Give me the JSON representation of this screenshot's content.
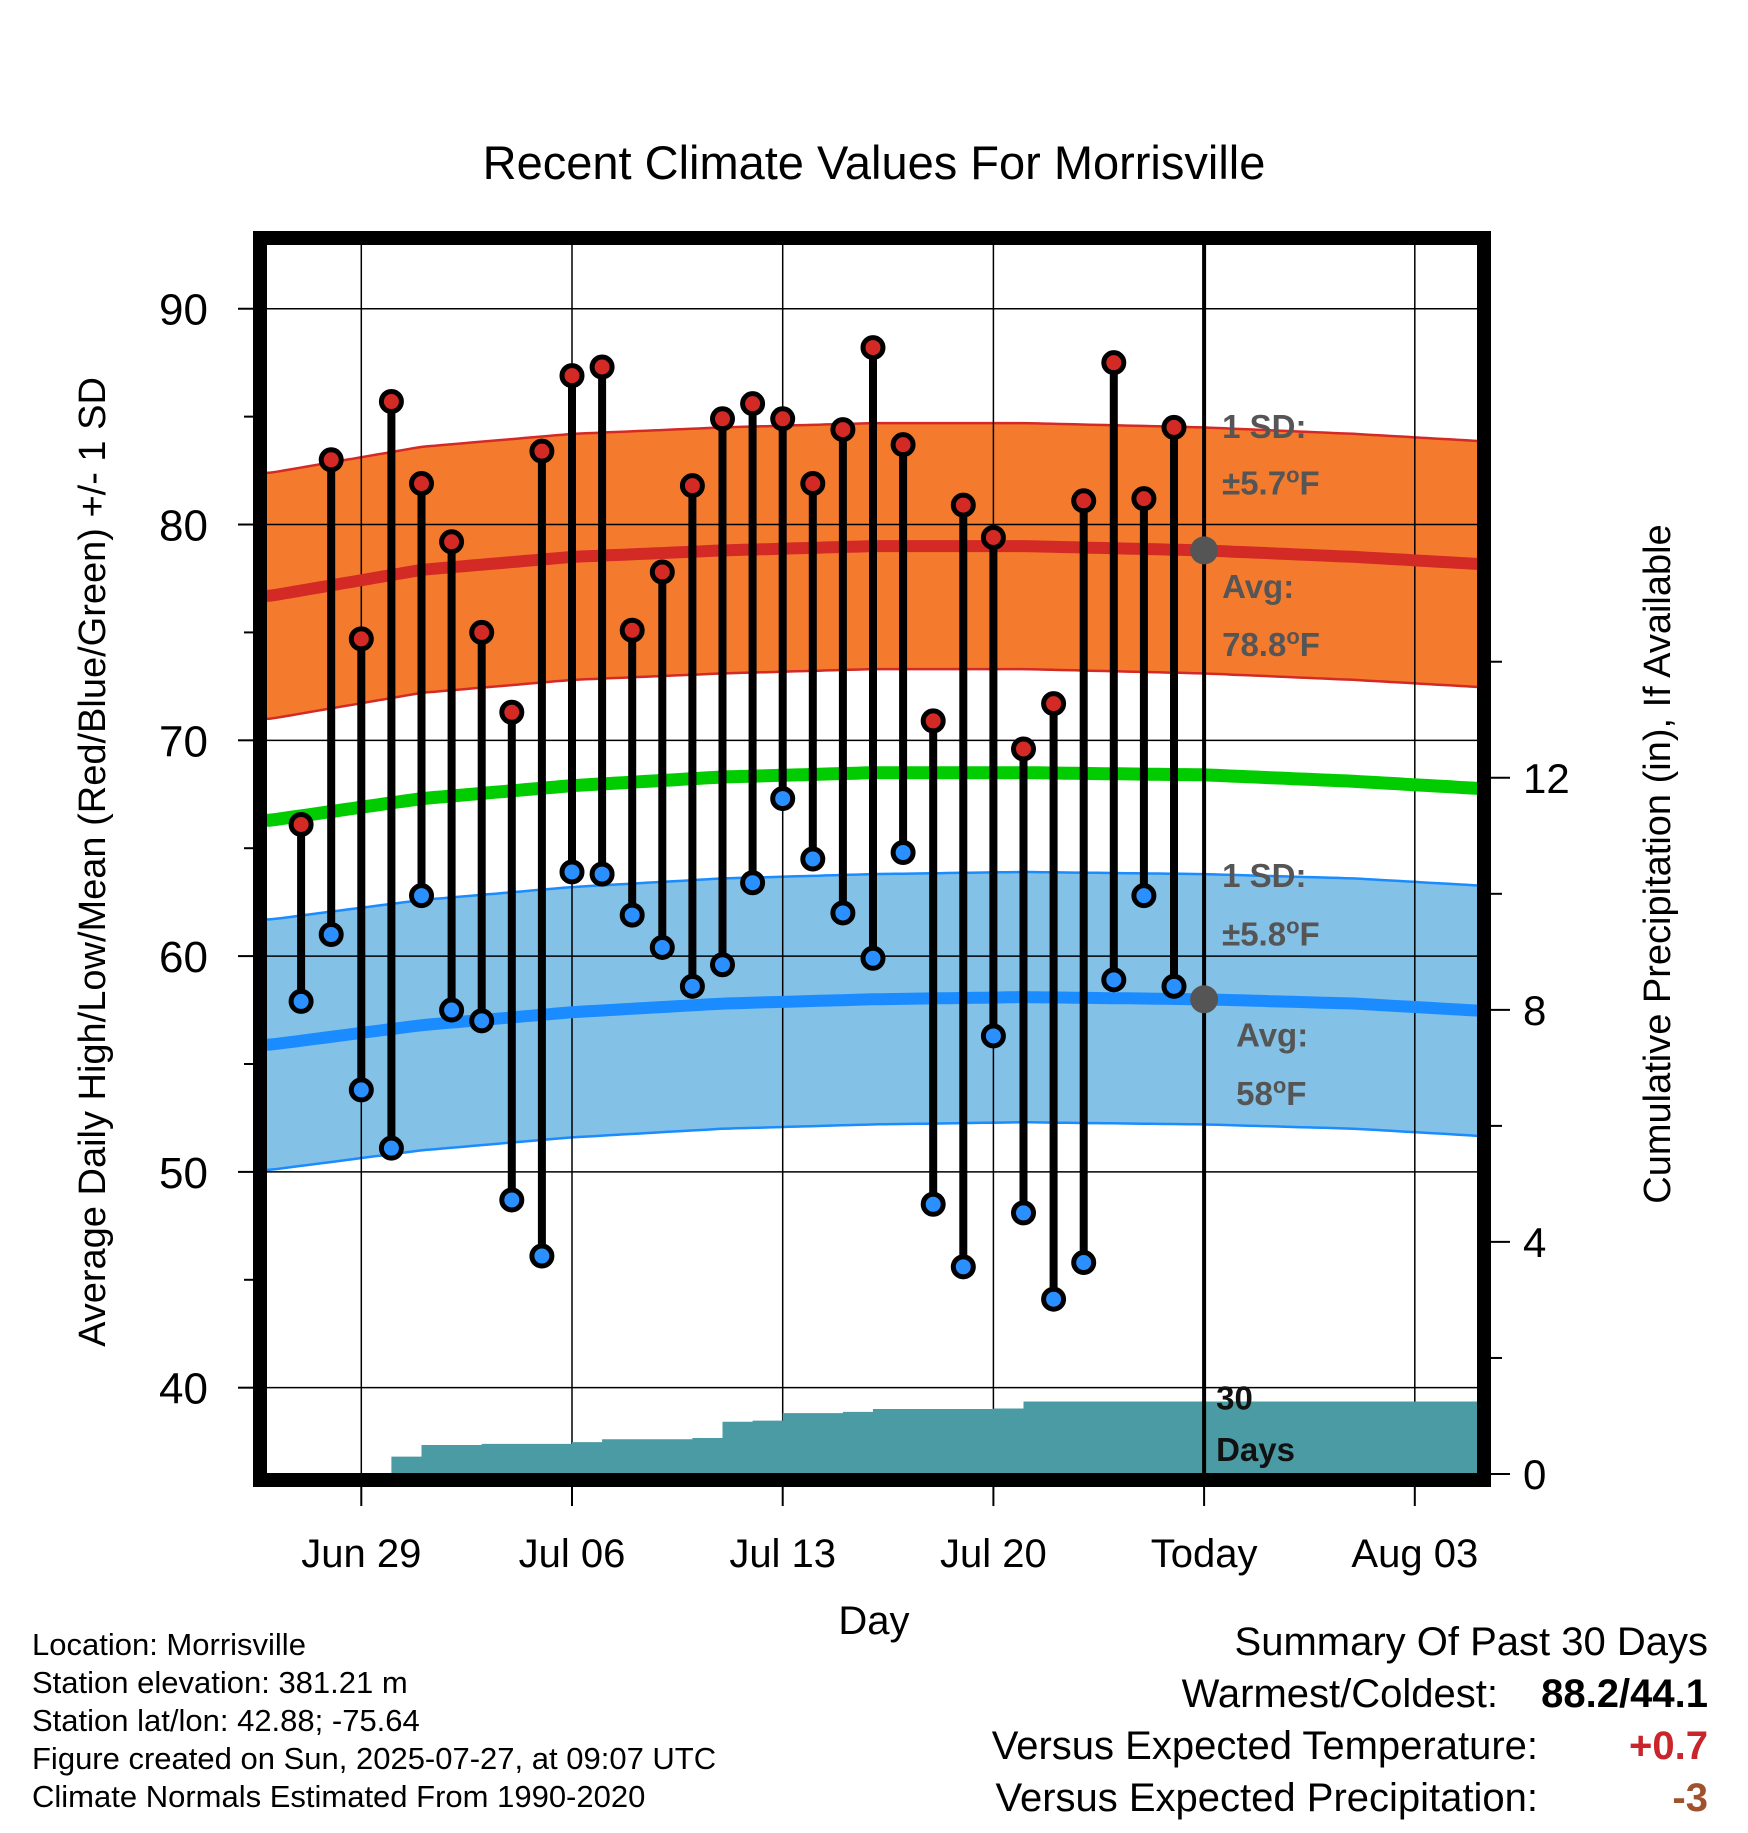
{
  "chart_data": {
    "type": "line",
    "title": "Recent Climate Values For Morrisville",
    "xlabel": "Day",
    "ylabel": "Average Daily High/Low/Mean (Red/Blue/Green) +/- 1 SD",
    "y2label": "Cumulative Precipitation (in), If Available",
    "ylim": [
      36,
      93
    ],
    "y_ticks": [
      40,
      50,
      60,
      70,
      80,
      90
    ],
    "y2_ticks": [
      0,
      4,
      8,
      12
    ],
    "y2lim": [
      0,
      21.2
    ],
    "x_range": [
      "2025-06-26",
      "2025-08-06"
    ],
    "x_ticks": [
      {
        "date": "2025-06-29",
        "label": "Jun 29"
      },
      {
        "date": "2025-07-06",
        "label": "Jul 06"
      },
      {
        "date": "2025-07-13",
        "label": "Jul 13"
      },
      {
        "date": "2025-07-20",
        "label": "Jul 20"
      },
      {
        "date": "2025-07-27",
        "label": "Today"
      },
      {
        "date": "2025-08-03",
        "label": "Aug 03"
      }
    ],
    "today": "2025-07-27",
    "today_label": "30 Days",
    "grid": true,
    "daily": [
      {
        "date": "2025-06-27",
        "high": 66.1,
        "low": 57.9
      },
      {
        "date": "2025-06-28",
        "high": 83.0,
        "low": 61.0
      },
      {
        "date": "2025-06-29",
        "high": 74.7,
        "low": 53.8
      },
      {
        "date": "2025-06-30",
        "high": 85.7,
        "low": 51.1
      },
      {
        "date": "2025-07-01",
        "high": 81.9,
        "low": 62.8
      },
      {
        "date": "2025-07-02",
        "high": 79.2,
        "low": 57.5
      },
      {
        "date": "2025-07-03",
        "high": 75.0,
        "low": 57.0
      },
      {
        "date": "2025-07-04",
        "high": 71.3,
        "low": 48.7
      },
      {
        "date": "2025-07-05",
        "high": 83.4,
        "low": 46.1
      },
      {
        "date": "2025-07-06",
        "high": 86.9,
        "low": 63.9
      },
      {
        "date": "2025-07-07",
        "high": 87.3,
        "low": 63.8
      },
      {
        "date": "2025-07-08",
        "high": 75.1,
        "low": 61.9
      },
      {
        "date": "2025-07-09",
        "high": 77.8,
        "low": 60.4
      },
      {
        "date": "2025-07-10",
        "high": 81.8,
        "low": 58.6
      },
      {
        "date": "2025-07-11",
        "high": 84.9,
        "low": 59.6
      },
      {
        "date": "2025-07-12",
        "high": 85.6,
        "low": 63.4
      },
      {
        "date": "2025-07-13",
        "high": 84.9,
        "low": 67.3
      },
      {
        "date": "2025-07-14",
        "high": 81.9,
        "low": 64.5
      },
      {
        "date": "2025-07-15",
        "high": 84.4,
        "low": 62.0
      },
      {
        "date": "2025-07-16",
        "high": 88.2,
        "low": 59.9
      },
      {
        "date": "2025-07-17",
        "high": 83.7,
        "low": 64.8
      },
      {
        "date": "2025-07-18",
        "high": 70.9,
        "low": 48.5
      },
      {
        "date": "2025-07-19",
        "high": 80.9,
        "low": 45.6
      },
      {
        "date": "2025-07-20",
        "high": 79.4,
        "low": 56.3
      },
      {
        "date": "2025-07-21",
        "high": 69.6,
        "low": 48.1
      },
      {
        "date": "2025-07-22",
        "high": 71.7,
        "low": 44.1
      },
      {
        "date": "2025-07-23",
        "high": 81.1,
        "low": 45.8
      },
      {
        "date": "2025-07-24",
        "high": 87.5,
        "low": 58.9
      },
      {
        "date": "2025-07-25",
        "high": 81.2,
        "low": 62.8
      },
      {
        "date": "2025-07-26",
        "high": 84.5,
        "low": 58.6
      }
    ],
    "normals": [
      {
        "date": "2025-06-26",
        "high": 76.7,
        "low": 55.9,
        "mean": 66.3
      },
      {
        "date": "2025-07-01",
        "high": 77.9,
        "low": 56.8,
        "mean": 67.3
      },
      {
        "date": "2025-07-06",
        "high": 78.5,
        "low": 57.4,
        "mean": 67.9
      },
      {
        "date": "2025-07-11",
        "high": 78.8,
        "low": 57.8,
        "mean": 68.3
      },
      {
        "date": "2025-07-16",
        "high": 79.0,
        "low": 58.0,
        "mean": 68.5
      },
      {
        "date": "2025-07-21",
        "high": 79.0,
        "low": 58.1,
        "mean": 68.5
      },
      {
        "date": "2025-07-27",
        "high": 78.8,
        "low": 58.0,
        "mean": 68.4
      },
      {
        "date": "2025-08-01",
        "high": 78.5,
        "low": 57.8,
        "mean": 68.1
      },
      {
        "date": "2025-08-06",
        "high": 78.1,
        "low": 57.4,
        "mean": 67.7
      }
    ],
    "high_sd": 5.7,
    "low_sd": 5.8,
    "precip_cumulative": [
      {
        "date": "2025-06-26",
        "value": 0
      },
      {
        "date": "2025-06-29",
        "value": 0
      },
      {
        "date": "2025-06-30",
        "value": 0.3
      },
      {
        "date": "2025-07-01",
        "value": 0.5
      },
      {
        "date": "2025-07-03",
        "value": 0.52
      },
      {
        "date": "2025-07-06",
        "value": 0.55
      },
      {
        "date": "2025-07-07",
        "value": 0.6
      },
      {
        "date": "2025-07-10",
        "value": 0.62
      },
      {
        "date": "2025-07-11",
        "value": 0.9
      },
      {
        "date": "2025-07-12",
        "value": 0.92
      },
      {
        "date": "2025-07-13",
        "value": 1.05
      },
      {
        "date": "2025-07-15",
        "value": 1.07
      },
      {
        "date": "2025-07-16",
        "value": 1.12
      },
      {
        "date": "2025-07-20",
        "value": 1.13
      },
      {
        "date": "2025-07-21",
        "value": 1.25
      },
      {
        "date": "2025-07-27",
        "value": 1.25
      },
      {
        "date": "2025-08-06",
        "value": 1.25
      }
    ],
    "annotations": {
      "high_sd_line1": "1 SD:",
      "high_sd_line2": "±5.7°F",
      "high_avg_line1": "Avg:",
      "high_avg_line2": "78.8°F",
      "high_avg_value": 78.8,
      "low_sd_line1": "1 SD:",
      "low_sd_line2": "±5.8°F",
      "low_avg_line1": "Avg:",
      "low_avg_line2": "58°F",
      "low_avg_value": 58.0,
      "today_line1": "30",
      "today_line2": "Days"
    },
    "colors": {
      "high_band": "#f47b2e",
      "high_line": "#d42a26",
      "low_band": "#84c1e6",
      "low_line": "#1a8cff",
      "mean_line": "#00cc00",
      "precip": "#4a9ba3",
      "high_dot": "#d42a26",
      "low_dot": "#2a8fff",
      "annotation": "#555555"
    }
  },
  "info": {
    "location": "Location: Morrisville",
    "elevation": "Station elevation: 381.21 m",
    "latlon": "Station lat/lon: 42.88; -75.64",
    "created": "Figure created on Sun, 2025-07-27, at 09:07 UTC",
    "normals": "Climate Normals Estimated From 1990-2020"
  },
  "summary": {
    "title": "Summary Of Past 30 Days",
    "warmest_label": "Warmest/Coldest:",
    "warmest_value": "88.2/44.1",
    "temp_label": "Versus Expected Temperature:",
    "temp_value": "+0.7",
    "temp_color": "#c8262a",
    "precip_label": "Versus Expected Precipitation:",
    "precip_value": "-3",
    "precip_color": "#a0522d"
  }
}
